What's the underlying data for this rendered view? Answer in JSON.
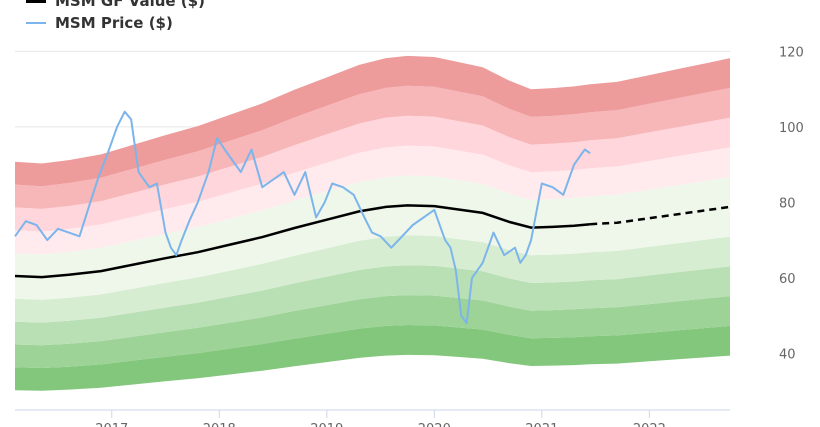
{
  "colors": {
    "gf_value": "#000000",
    "price": "#7cb5ec",
    "over_bands": [
      "#ffebed",
      "#ffd6dc",
      "#f7b6b8",
      "#ed9b9b",
      "#f07d7d"
    ],
    "under_bands": [
      "#eef7ea",
      "#d7edd2",
      "#b9dfb4",
      "#9dd396",
      "#83c77d"
    ]
  },
  "legend": [
    {
      "label": "MSM GF Value ($)",
      "series": "gf_value"
    },
    {
      "label": "MSM Price ($)",
      "series": "price"
    }
  ],
  "chart_data": {
    "type": "line",
    "title": "",
    "xlabel": "",
    "ylabel": "",
    "xlim": [
      2016.1,
      2022.75
    ],
    "ylim": [
      25,
      123
    ],
    "y_axis_position": "right",
    "y_ticks": [
      40,
      60,
      80,
      100,
      120
    ],
    "x_ticks": [
      2017,
      2018,
      2019,
      2020,
      2021,
      2022
    ],
    "grid": true,
    "legend_position": "top-left",
    "band_multipliers": [
      0.5,
      0.6,
      0.7,
      0.8,
      0.9,
      1.1,
      1.2,
      1.3,
      1.4,
      1.5
    ],
    "series": [
      {
        "name": "MSM GF Value ($)",
        "x": [
          2016.1,
          2016.35,
          2016.6,
          2016.9,
          2017.2,
          2017.5,
          2017.8,
          2018.1,
          2018.4,
          2018.7,
          2019.0,
          2019.3,
          2019.55,
          2019.75,
          2020.0,
          2020.2,
          2020.45,
          2020.7,
          2020.9,
          2021.1,
          2021.3,
          2021.45
        ],
        "y": [
          60.5,
          60.2,
          60.8,
          61.8,
          63.5,
          65.2,
          66.8,
          68.8,
          70.8,
          73.2,
          75.4,
          77.6,
          78.8,
          79.2,
          79.0,
          78.2,
          77.2,
          74.8,
          73.3,
          73.5,
          73.8,
          74.2
        ]
      },
      {
        "name": "GF Value projection",
        "style": "dashed",
        "x": [
          2021.45,
          2021.7,
          2022.0,
          2022.3,
          2022.55,
          2022.75
        ],
        "y": [
          74.2,
          74.6,
          75.8,
          77.0,
          78.0,
          78.8
        ]
      },
      {
        "name": "MSM Price ($)",
        "x": [
          2016.1,
          2016.2,
          2016.3,
          2016.4,
          2016.5,
          2016.6,
          2016.7,
          2016.8,
          2016.88,
          2016.95,
          2017.05,
          2017.12,
          2017.18,
          2017.25,
          2017.3,
          2017.35,
          2017.42,
          2017.5,
          2017.55,
          2017.6,
          2017.65,
          2017.72,
          2017.8,
          2017.9,
          2017.98,
          2018.05,
          2018.1,
          2018.2,
          2018.3,
          2018.4,
          2018.5,
          2018.6,
          2018.7,
          2018.8,
          2018.9,
          2018.98,
          2019.05,
          2019.15,
          2019.25,
          2019.35,
          2019.42,
          2019.5,
          2019.6,
          2019.7,
          2019.8,
          2019.9,
          2020.0,
          2020.1,
          2020.15,
          2020.2,
          2020.25,
          2020.3,
          2020.35,
          2020.45,
          2020.55,
          2020.65,
          2020.75,
          2020.8,
          2020.85,
          2020.9,
          2021.0,
          2021.1,
          2021.2,
          2021.3,
          2021.4,
          2021.45
        ],
        "y": [
          71,
          75,
          74,
          70,
          73,
          72,
          71,
          80,
          87,
          92,
          100,
          104,
          102,
          88,
          86,
          84,
          85,
          72,
          68,
          66,
          70,
          75,
          80,
          88,
          97,
          94,
          92,
          88,
          94,
          84,
          86,
          88,
          82,
          88,
          76,
          80,
          85,
          84,
          82,
          76,
          72,
          71,
          68,
          71,
          74,
          76,
          78,
          70,
          68,
          62,
          50,
          48,
          60,
          64,
          72,
          66,
          68,
          64,
          66,
          70,
          85,
          84,
          82,
          90,
          94,
          93
        ]
      }
    ]
  }
}
